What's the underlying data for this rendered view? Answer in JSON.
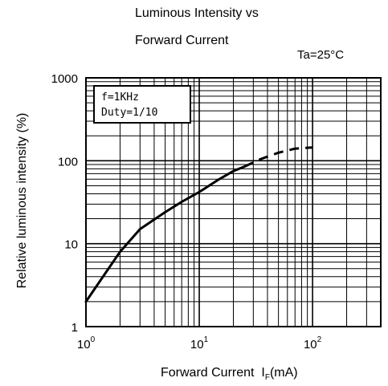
{
  "chart_data": {
    "type": "line",
    "title": "Luminous Intensity vs",
    "subtitle": "Forward Current",
    "condition": "Ta=25°C",
    "xlabel": "Forward Current",
    "xlabel_symbol": "I",
    "xlabel_subscript": "F",
    "xlabel_unit": "(mA)",
    "ylabel": "Relative luminous intensity   (%)",
    "xscale": "log",
    "yscale": "log",
    "xlim": [
      1,
      400
    ],
    "ylim": [
      1,
      1000
    ],
    "x_ticks": [
      {
        "value": 1,
        "base": "10",
        "exp": "0"
      },
      {
        "value": 10,
        "base": "10",
        "exp": "1"
      },
      {
        "value": 100,
        "base": "10",
        "exp": "2"
      }
    ],
    "y_ticks": [
      {
        "value": 1,
        "label": "1"
      },
      {
        "value": 10,
        "label": "10"
      },
      {
        "value": 100,
        "label": "100"
      },
      {
        "value": 1000,
        "label": "1000"
      }
    ],
    "grid": true,
    "legend_box": {
      "lines": [
        "f=1KHz",
        "Duty=1/10"
      ],
      "position": "top-left"
    },
    "series": [
      {
        "style": "solid",
        "x": [
          1,
          1.5,
          2,
          3,
          5,
          7,
          10,
          15,
          20,
          25
        ],
        "y": [
          2,
          4.5,
          8,
          15,
          24,
          32,
          42,
          60,
          75,
          85
        ]
      },
      {
        "style": "dashed",
        "x": [
          25,
          35,
          50,
          70,
          100
        ],
        "y": [
          85,
          105,
          125,
          140,
          145
        ]
      }
    ]
  }
}
